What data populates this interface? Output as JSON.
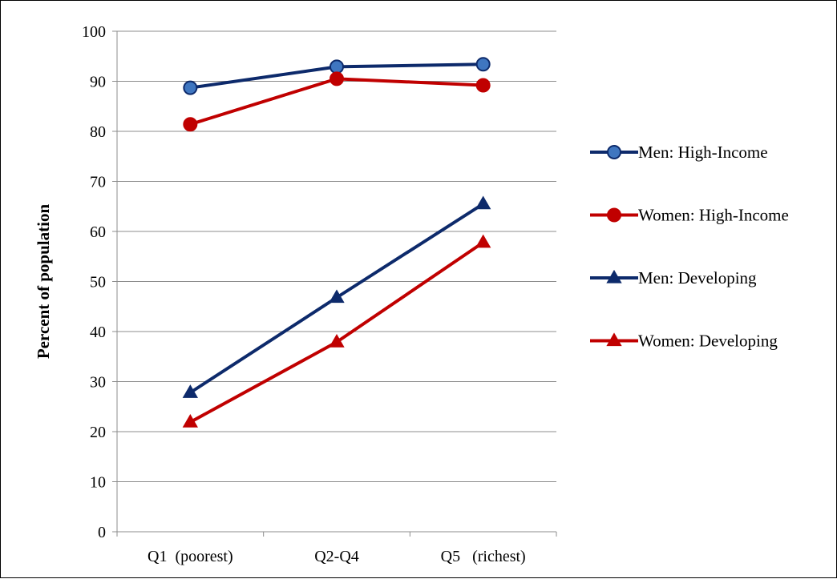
{
  "chart_data": {
    "type": "line",
    "title": "",
    "xlabel": "",
    "ylabel": "Percent of population",
    "categories": [
      "Q1  (poorest)",
      "Q2-Q4",
      "Q5   (richest)"
    ],
    "ylim": [
      0,
      100
    ],
    "yticks": [
      0,
      10,
      20,
      30,
      40,
      50,
      60,
      70,
      80,
      90,
      100
    ],
    "grid": true,
    "legend_position": "right",
    "series": [
      {
        "name": "Men: High-Income",
        "values": [
          88.7,
          92.9,
          93.4
        ],
        "color": "#0D2A6B",
        "marker": "circle",
        "marker_fill": "#3F76C0"
      },
      {
        "name": "Women: High-Income",
        "values": [
          81.4,
          90.5,
          89.2
        ],
        "color": "#C00000",
        "marker": "circle",
        "marker_fill": "#C00000"
      },
      {
        "name": "Men: Developing",
        "values": [
          27.8,
          46.8,
          65.5
        ],
        "color": "#0D2A6B",
        "marker": "triangle",
        "marker_fill": "#0D2A6B"
      },
      {
        "name": "Women: Developing",
        "values": [
          21.9,
          37.9,
          57.8
        ],
        "color": "#C00000",
        "marker": "triangle",
        "marker_fill": "#C00000"
      }
    ]
  }
}
